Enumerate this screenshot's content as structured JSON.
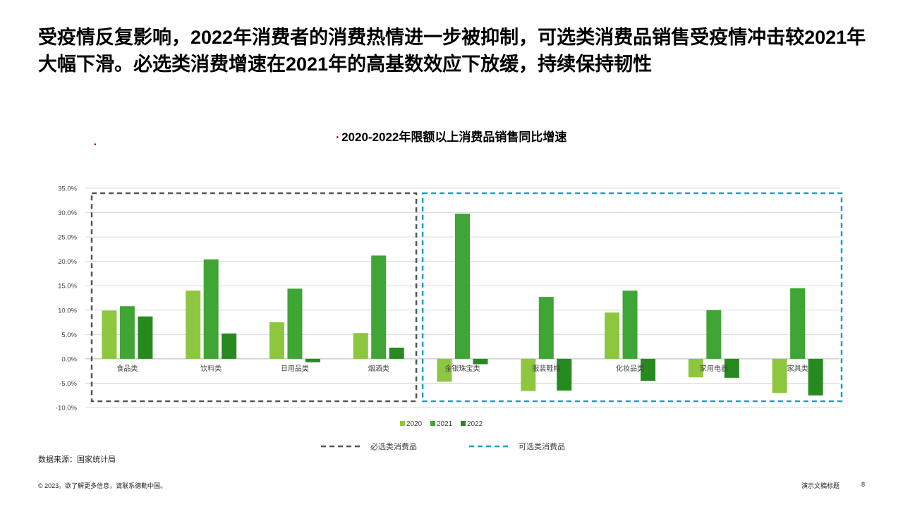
{
  "headline": "受疫情反复影响，2022年消费者的消费热情进一步被抑制，可选类消费品销售受疫情冲击较2021年大幅下滑。必选类消费增速在2021年的高基数效应下放缓，持续保持韧性",
  "chart_title": "2020-2022年限额以上消费品销售同比增速",
  "source": "数据来源：国家统计局",
  "footer": {
    "copyright": "© 2023。欲了解更多信息，请联系德勤中国。",
    "deck_title": "演示文稿标题",
    "page_number": "8"
  },
  "colors": {
    "2020": "#8dc63f",
    "2021": "#3fa535",
    "2022": "#278a1e",
    "essential_box": "#555555",
    "optional_box": "#1aa0c0"
  },
  "chart_data": {
    "type": "bar",
    "categories": [
      "食品类",
      "饮料类",
      "日用品类",
      "烟酒类",
      "金银珠宝类",
      "服装鞋帽",
      "化妆品类",
      "家用电器",
      "家具类"
    ],
    "series": [
      {
        "name": "2020",
        "values": [
          9.9,
          14.0,
          7.5,
          5.3,
          -4.7,
          -6.6,
          9.5,
          -3.8,
          -7.0
        ]
      },
      {
        "name": "2021",
        "values": [
          10.8,
          20.4,
          14.4,
          21.2,
          29.8,
          12.7,
          14.0,
          10.0,
          14.5
        ]
      },
      {
        "name": "2022",
        "values": [
          8.7,
          5.2,
          -0.7,
          2.3,
          -1.1,
          -6.5,
          -4.5,
          -3.9,
          -7.5
        ]
      }
    ],
    "ylim": [
      -10,
      35
    ],
    "yticks": [
      "-10.0%",
      "-5.0%",
      "0.0%",
      "5.0%",
      "10.0%",
      "15.0%",
      "20.0%",
      "25.0%",
      "30.0%",
      "35.0%"
    ],
    "grid": true,
    "legend_position": "bottom",
    "groups": [
      {
        "label": "必选类消费品",
        "categories": [
          "食品类",
          "饮料类",
          "日用品类",
          "烟酒类"
        ]
      },
      {
        "label": "可选类消费品",
        "categories": [
          "金银珠宝类",
          "服装鞋帽",
          "化妆品类",
          "家用电器",
          "家具类"
        ]
      }
    ]
  }
}
